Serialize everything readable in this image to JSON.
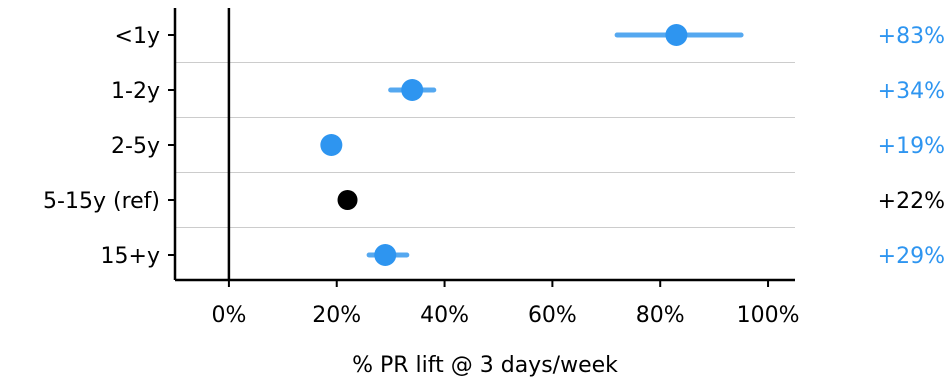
{
  "chart_data": {
    "type": "scatter",
    "title": "",
    "xlabel": "% PR lift @ 3 days/week",
    "ylabel": "",
    "xlim": [
      -10,
      105
    ],
    "xticks": [
      0,
      20,
      40,
      60,
      80,
      100
    ],
    "xtick_labels": [
      "0%",
      "20%",
      "40%",
      "60%",
      "80%",
      "100%"
    ],
    "grid": "horizontal separators between rows",
    "vline_at": 0,
    "categories": [
      "<1y",
      "1-2y",
      "2-5y",
      "5-15y (ref)",
      "15+y"
    ],
    "points": [
      {
        "category": "<1y",
        "value": 83,
        "ci": [
          72,
          95
        ],
        "label": "+83%",
        "reference": false
      },
      {
        "category": "1-2y",
        "value": 34,
        "ci": [
          30,
          38
        ],
        "label": "+34%",
        "reference": false
      },
      {
        "category": "2-5y",
        "value": 19,
        "ci": [
          19,
          19
        ],
        "label": "+19%",
        "reference": false
      },
      {
        "category": "5-15y (ref)",
        "value": 22,
        "ci": [
          22,
          22
        ],
        "label": "+22%",
        "reference": true
      },
      {
        "category": "15+y",
        "value": 29,
        "ci": [
          26,
          33
        ],
        "label": "+29%",
        "reference": false
      }
    ],
    "colors": {
      "point": "#2e95f0",
      "ci_line": "#55a8f0",
      "reference": "#000000",
      "label": "#2e95f0",
      "reference_label": "#000000",
      "axis": "#000000",
      "grid": "#cccccc"
    }
  }
}
